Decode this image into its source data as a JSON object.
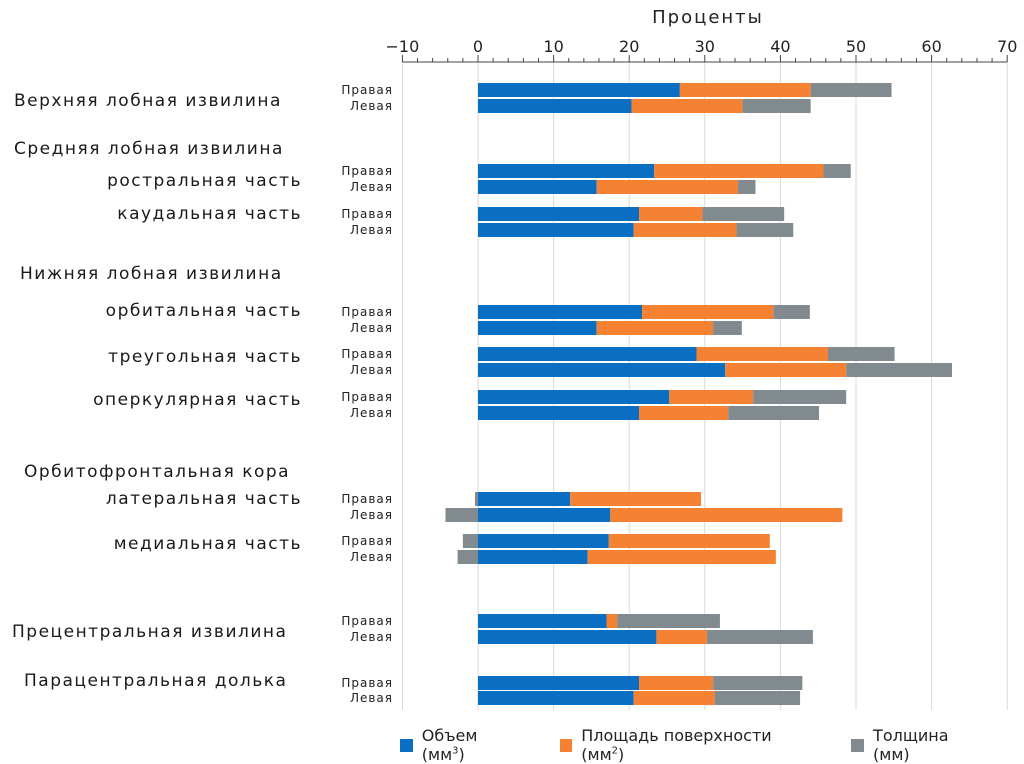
{
  "chart_data": {
    "type": "bar",
    "orientation": "horizontal",
    "stacked": true,
    "xlabel": "Проценты",
    "xlim": [
      -10,
      70
    ],
    "ticks": [
      -10,
      0,
      10,
      20,
      30,
      40,
      50,
      60,
      70
    ],
    "tick_labels": [
      "−10",
      "0",
      "10",
      "20",
      "30",
      "40",
      "50",
      "60",
      "70"
    ],
    "grid": true,
    "legend_position": "bottom",
    "colors": {
      "volume": "#0a6fc2",
      "area": "#f58233",
      "thickness": "#818a8f"
    },
    "legend": [
      {
        "key": "volume",
        "text": "Объем (мм",
        "sup": "3",
        "close": ")"
      },
      {
        "key": "area",
        "text": "Площадь поверхности (мм",
        "sup": "2",
        "close": ")"
      },
      {
        "key": "thickness",
        "text": "Толщина (мм)",
        "sup": "",
        "close": ""
      }
    ],
    "side_labels": {
      "right": "Правая",
      "left": "Левая"
    },
    "group_labels": [
      "Верхняя лобная извилина",
      "Средняя лобная извилина",
      "Нижняя лобная извилина",
      "Орбитофронтальная кора",
      "Прецентральная извилина",
      "Парацентральная долька"
    ],
    "sub_labels": [
      "ростральная часть",
      "каудальная часть",
      "орбитальная часть",
      "треугольная часть",
      "оперкулярная часть",
      "латеральная часть",
      "медиальная часть"
    ],
    "rows": [
      {
        "region": "Верхняя лобная извилина",
        "side": "Правая",
        "volume": 26.7,
        "area": 17.3,
        "thickness": 10.7
      },
      {
        "region": "Верхняя лобная извилина",
        "side": "Левая",
        "volume": 20.3,
        "area": 14.7,
        "thickness": 9.0
      },
      {
        "region": "Средняя лобная извилина — ростральная часть",
        "side": "Правая",
        "volume": 23.3,
        "area": 22.4,
        "thickness": 3.6
      },
      {
        "region": "Средняя лобная извилина — ростральная часть",
        "side": "Левая",
        "volume": 15.7,
        "area": 18.7,
        "thickness": 2.3
      },
      {
        "region": "Средняя лобная извилина — каудальная часть",
        "side": "Правая",
        "volume": 21.3,
        "area": 8.4,
        "thickness": 10.8
      },
      {
        "region": "Средняя лобная извилина — каудальная часть",
        "side": "Левая",
        "volume": 20.6,
        "area": 13.6,
        "thickness": 7.5
      },
      {
        "region": "Нижняя лобная извилина — орбитальная часть",
        "side": "Правая",
        "volume": 21.7,
        "area": 17.4,
        "thickness": 4.8
      },
      {
        "region": "Нижняя лобная извилина — орбитальная часть",
        "side": "Левая",
        "volume": 15.7,
        "area": 15.4,
        "thickness": 3.8
      },
      {
        "region": "Нижняя лобная извилина — треугольная часть",
        "side": "Правая",
        "volume": 28.9,
        "area": 17.4,
        "thickness": 8.8
      },
      {
        "region": "Нижняя лобная извилина — треугольная часть",
        "side": "Левая",
        "volume": 32.7,
        "area": 16.0,
        "thickness": 14.0
      },
      {
        "region": "Нижняя лобная извилина — оперкулярная часть",
        "side": "Правая",
        "volume": 25.3,
        "area": 11.1,
        "thickness": 12.3
      },
      {
        "region": "Нижняя лобная извилина — оперкулярная часть",
        "side": "Левая",
        "volume": 21.3,
        "area": 11.8,
        "thickness": 12.0
      },
      {
        "region": "Орбитофронтальная кора — латеральная часть",
        "side": "Правая",
        "volume": 12.2,
        "area": 17.3,
        "thickness": -0.4
      },
      {
        "region": "Орбитофронтальная кора — латеральная часть",
        "side": "Левая",
        "volume": 17.5,
        "area": 30.7,
        "thickness": -4.3
      },
      {
        "region": "Орбитофронтальная кора — медиальная часть",
        "side": "Правая",
        "volume": 17.3,
        "area": 21.3,
        "thickness": -2.0
      },
      {
        "region": "Орбитофронтальная кора — медиальная часть",
        "side": "Левая",
        "volume": 14.5,
        "area": 24.9,
        "thickness": -2.7
      },
      {
        "region": "Прецентральная извилина",
        "side": "Правая",
        "volume": 17.0,
        "area": 1.4,
        "thickness": 13.6
      },
      {
        "region": "Прецентральная извилина",
        "side": "Левая",
        "volume": 23.6,
        "area": 6.7,
        "thickness": 14.0
      },
      {
        "region": "Парацентральная долька",
        "side": "Правая",
        "volume": 21.3,
        "area": 9.8,
        "thickness": 11.8
      },
      {
        "region": "Парацентральная долька",
        "side": "Левая",
        "volume": 20.6,
        "area": 10.7,
        "thickness": 11.3
      }
    ]
  }
}
